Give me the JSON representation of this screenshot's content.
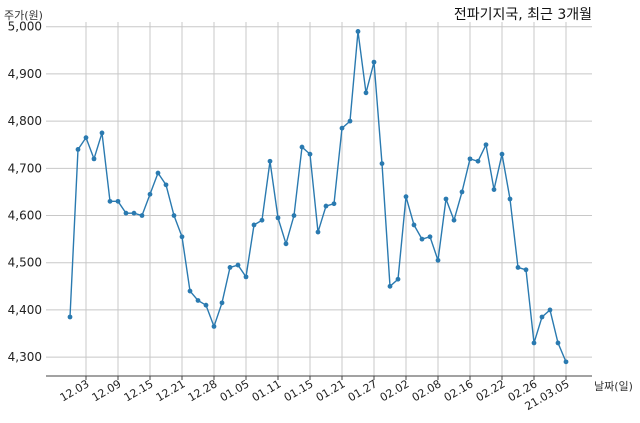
{
  "chart_data": {
    "type": "line",
    "title": "전파기지국, 최근 3개월",
    "ylabel": "주가(원)",
    "xlabel": "날짜(일)",
    "ylim": [
      4260,
      5010
    ],
    "yticks": [
      4300,
      4400,
      4500,
      4600,
      4700,
      4800,
      4900,
      5000
    ],
    "ytick_labels": [
      "4,300",
      "4,400",
      "4,500",
      "4,600",
      "4,700",
      "4,800",
      "4,900",
      "5,000"
    ],
    "grid": true,
    "line_color": "#2a7ab0",
    "xticks": [
      {
        "index": 2,
        "label": "12.03"
      },
      {
        "index": 6,
        "label": "12.09"
      },
      {
        "index": 10,
        "label": "12.15"
      },
      {
        "index": 14,
        "label": "12.21"
      },
      {
        "index": 18,
        "label": "12.28"
      },
      {
        "index": 22,
        "label": "01.05"
      },
      {
        "index": 26,
        "label": "01.11"
      },
      {
        "index": 30,
        "label": "01.15"
      },
      {
        "index": 34,
        "label": "01.21"
      },
      {
        "index": 38,
        "label": "01.27"
      },
      {
        "index": 42,
        "label": "02.02"
      },
      {
        "index": 46,
        "label": "02.08"
      },
      {
        "index": 50,
        "label": "02.16"
      },
      {
        "index": 54,
        "label": "02.22"
      },
      {
        "index": 58,
        "label": "02.26"
      },
      {
        "index": 62,
        "label": "21.03.05"
      }
    ],
    "series": [
      {
        "values": [
          4385,
          4740,
          4765,
          4720,
          4775,
          4630,
          4630,
          4605,
          4605,
          4600,
          4645,
          4690,
          4665,
          4600,
          4555,
          4440,
          4420,
          4410,
          4365,
          4415,
          4490,
          4495,
          4470,
          4580,
          4590,
          4715,
          4595,
          4540,
          4600,
          4745,
          4730,
          4565,
          4620,
          4625,
          4785,
          4800,
          4990,
          4860,
          4925,
          4710,
          4450,
          4465,
          4640,
          4580,
          4550,
          4555,
          4505,
          4635,
          4590,
          4650,
          4720,
          4715,
          4750,
          4655,
          4730,
          4635,
          4490,
          4485,
          4330,
          4385,
          4400,
          4330,
          4290
        ]
      }
    ]
  }
}
